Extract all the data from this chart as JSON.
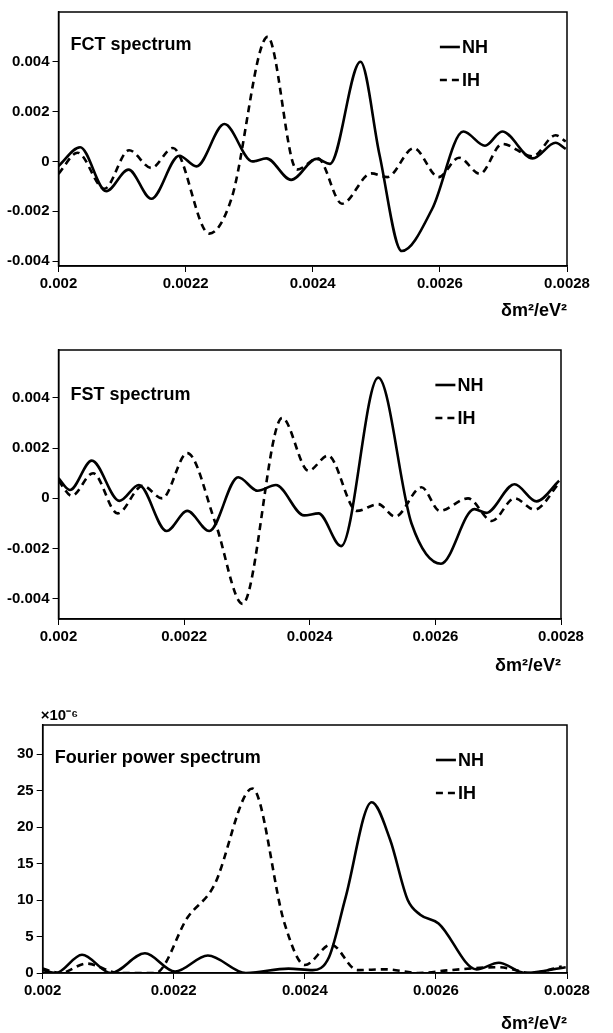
{
  "chart_data": [
    {
      "type": "line",
      "title": "FCT spectrum",
      "xlabel": "δm²/eV²",
      "xlim": [
        0.002,
        0.0028
      ],
      "xticks": [
        0.002,
        0.0022,
        0.0024,
        0.0026,
        0.0028
      ],
      "ylim": [
        -0.0042,
        0.006
      ],
      "yticks": [
        -0.004,
        -0.002,
        0,
        0.002,
        0.004
      ],
      "grid": false,
      "legend": "top right",
      "marker": "none",
      "series": [
        {
          "name": "NH",
          "color": "#000000",
          "line_style": "solid",
          "x": [
            0.002,
            0.002034,
            0.002075,
            0.00211,
            0.002146,
            0.00219,
            0.002217,
            0.002261,
            0.002305,
            0.002327,
            0.002366,
            0.002406,
            0.002427,
            0.002475,
            0.002505,
            0.00254,
            0.002588,
            0.002637,
            0.002671,
            0.002698,
            0.002746,
            0.002782,
            0.002798
          ],
          "values": [
            -0.00018,
            0.00057,
            -0.0012,
            -0.00033,
            -0.0015,
            0.00023,
            -0.0002,
            0.0015,
            0,
            0.00012,
            -0.00074,
            0.0001,
            -0.0001,
            0.004,
            0.00027,
            -0.0036,
            -0.0019,
            0.0012,
            0.00063,
            0.0012,
            0.00012,
            0.00075,
            0.0005
          ]
        },
        {
          "name": "IH",
          "color": "#000000",
          "line_style": "dashed",
          "x": [
            0.002,
            0.00203,
            0.002072,
            0.002111,
            0.002146,
            0.00218,
            0.002237,
            0.002272,
            0.002329,
            0.002375,
            0.002408,
            0.002446,
            0.002492,
            0.002517,
            0.002559,
            0.002598,
            0.00263,
            0.002663,
            0.002698,
            0.002746,
            0.002782,
            0.002798
          ],
          "values": [
            -0.0005,
            0.00035,
            -0.0011,
            0.00045,
            -0.00026,
            0.00054,
            -0.0029,
            -0.0015,
            0.005,
            -0.00033,
            0.00012,
            -0.0017,
            -0.00048,
            -0.00063,
            0.00053,
            -0.00063,
            0.00015,
            -0.0005,
            0.0007,
            0.0002,
            0.00105,
            0.0008
          ]
        }
      ]
    },
    {
      "type": "line",
      "title": "FST spectrum",
      "xlabel": "δm²/eV²",
      "xlim": [
        0.002,
        0.0028
      ],
      "xticks": [
        0.002,
        0.0022,
        0.0024,
        0.0026,
        0.0028
      ],
      "ylim": [
        -0.0048,
        0.0059
      ],
      "yticks": [
        -0.004,
        -0.002,
        0,
        0.002,
        0.004
      ],
      "grid": false,
      "legend": "top right",
      "marker": "none",
      "series": [
        {
          "name": "NH",
          "color": "#000000",
          "line_style": "solid",
          "x": [
            0.002,
            0.002018,
            0.002053,
            0.002097,
            0.002128,
            0.002172,
            0.002205,
            0.00224,
            0.002286,
            0.002317,
            0.002346,
            0.002391,
            0.002414,
            0.00245,
            0.002509,
            0.002562,
            0.002609,
            0.002662,
            0.002681,
            0.002726,
            0.002761,
            0.002797
          ],
          "values": [
            0.0008,
            0.00033,
            0.0015,
            -0.0001,
            0.00053,
            -0.0013,
            -0.0005,
            -0.0013,
            0.00084,
            0.0003,
            0.00053,
            -0.00068,
            -0.0006,
            -0.0019,
            0.0048,
            -0.001,
            -0.0026,
            -0.00043,
            -0.00058,
            0.00056,
            -0.00012,
            0.0007
          ]
        },
        {
          "name": "IH",
          "color": "#000000",
          "line_style": "dashed",
          "x": [
            0.002,
            0.002021,
            0.002055,
            0.002094,
            0.002134,
            0.002165,
            0.002205,
            0.00225,
            0.002293,
            0.002356,
            0.002398,
            0.002429,
            0.002475,
            0.002509,
            0.002536,
            0.002578,
            0.002607,
            0.002652,
            0.00269,
            0.002726,
            0.002758,
            0.002797
          ],
          "values": [
            0.0007,
            0.0001,
            0.001,
            -0.0006,
            0.0005,
            0,
            0.0018,
            -0.001,
            -0.0042,
            0.0032,
            0.0011,
            0.0017,
            -0.0005,
            -0.00023,
            -0.00073,
            0.00044,
            -0.0005,
            0,
            -0.0009,
            0,
            -0.00045,
            0.0006
          ]
        }
      ]
    },
    {
      "type": "line",
      "title": "Fourier power spectrum",
      "xlabel": "δm²/eV²",
      "annotations": [
        "×10⁻⁶"
      ],
      "xlim": [
        0.002,
        0.0028
      ],
      "xticks": [
        0.002,
        0.0022,
        0.0024,
        0.0026,
        0.0028
      ],
      "ylim": [
        0,
        34
      ],
      "yticks": [
        0,
        5,
        10,
        15,
        20,
        25,
        30
      ],
      "grid": false,
      "legend": "top right",
      "marker": "none",
      "series": [
        {
          "name": "NH",
          "color": "#000000",
          "line_style": "solid",
          "x": [
            0.002,
            0.00202,
            0.00206,
            0.002104,
            0.002156,
            0.002202,
            0.002252,
            0.00231,
            0.002375,
            0.002412,
            0.002437,
            0.002462,
            0.002502,
            0.00253,
            0.002557,
            0.002576,
            0.002604,
            0.002662,
            0.002696,
            0.002736,
            0.002798
          ],
          "values": [
            0.4,
            0,
            2.5,
            0,
            2.7,
            0.2,
            2.4,
            0,
            0.6,
            0.4,
            2.2,
            10.3,
            23.4,
            18.3,
            10,
            8,
            6.8,
            0.5,
            1.4,
            0,
            0.8
          ]
        },
        {
          "name": "IH",
          "color": "#000000",
          "line_style": "dashed",
          "x": [
            0.002,
            0.002027,
            0.002067,
            0.002116,
            0.002172,
            0.002221,
            0.002261,
            0.00232,
            0.002369,
            0.0024,
            0.00244,
            0.00248,
            0.002523,
            0.002573,
            0.002622,
            0.002696,
            0.002746,
            0.002792
          ],
          "values": [
            0.6,
            0,
            1.3,
            0,
            0,
            7.6,
            11.9,
            25.3,
            6.8,
            1.1,
            3.9,
            0.4,
            0.5,
            0,
            0.4,
            0.8,
            0,
            0.9
          ]
        }
      ]
    }
  ]
}
